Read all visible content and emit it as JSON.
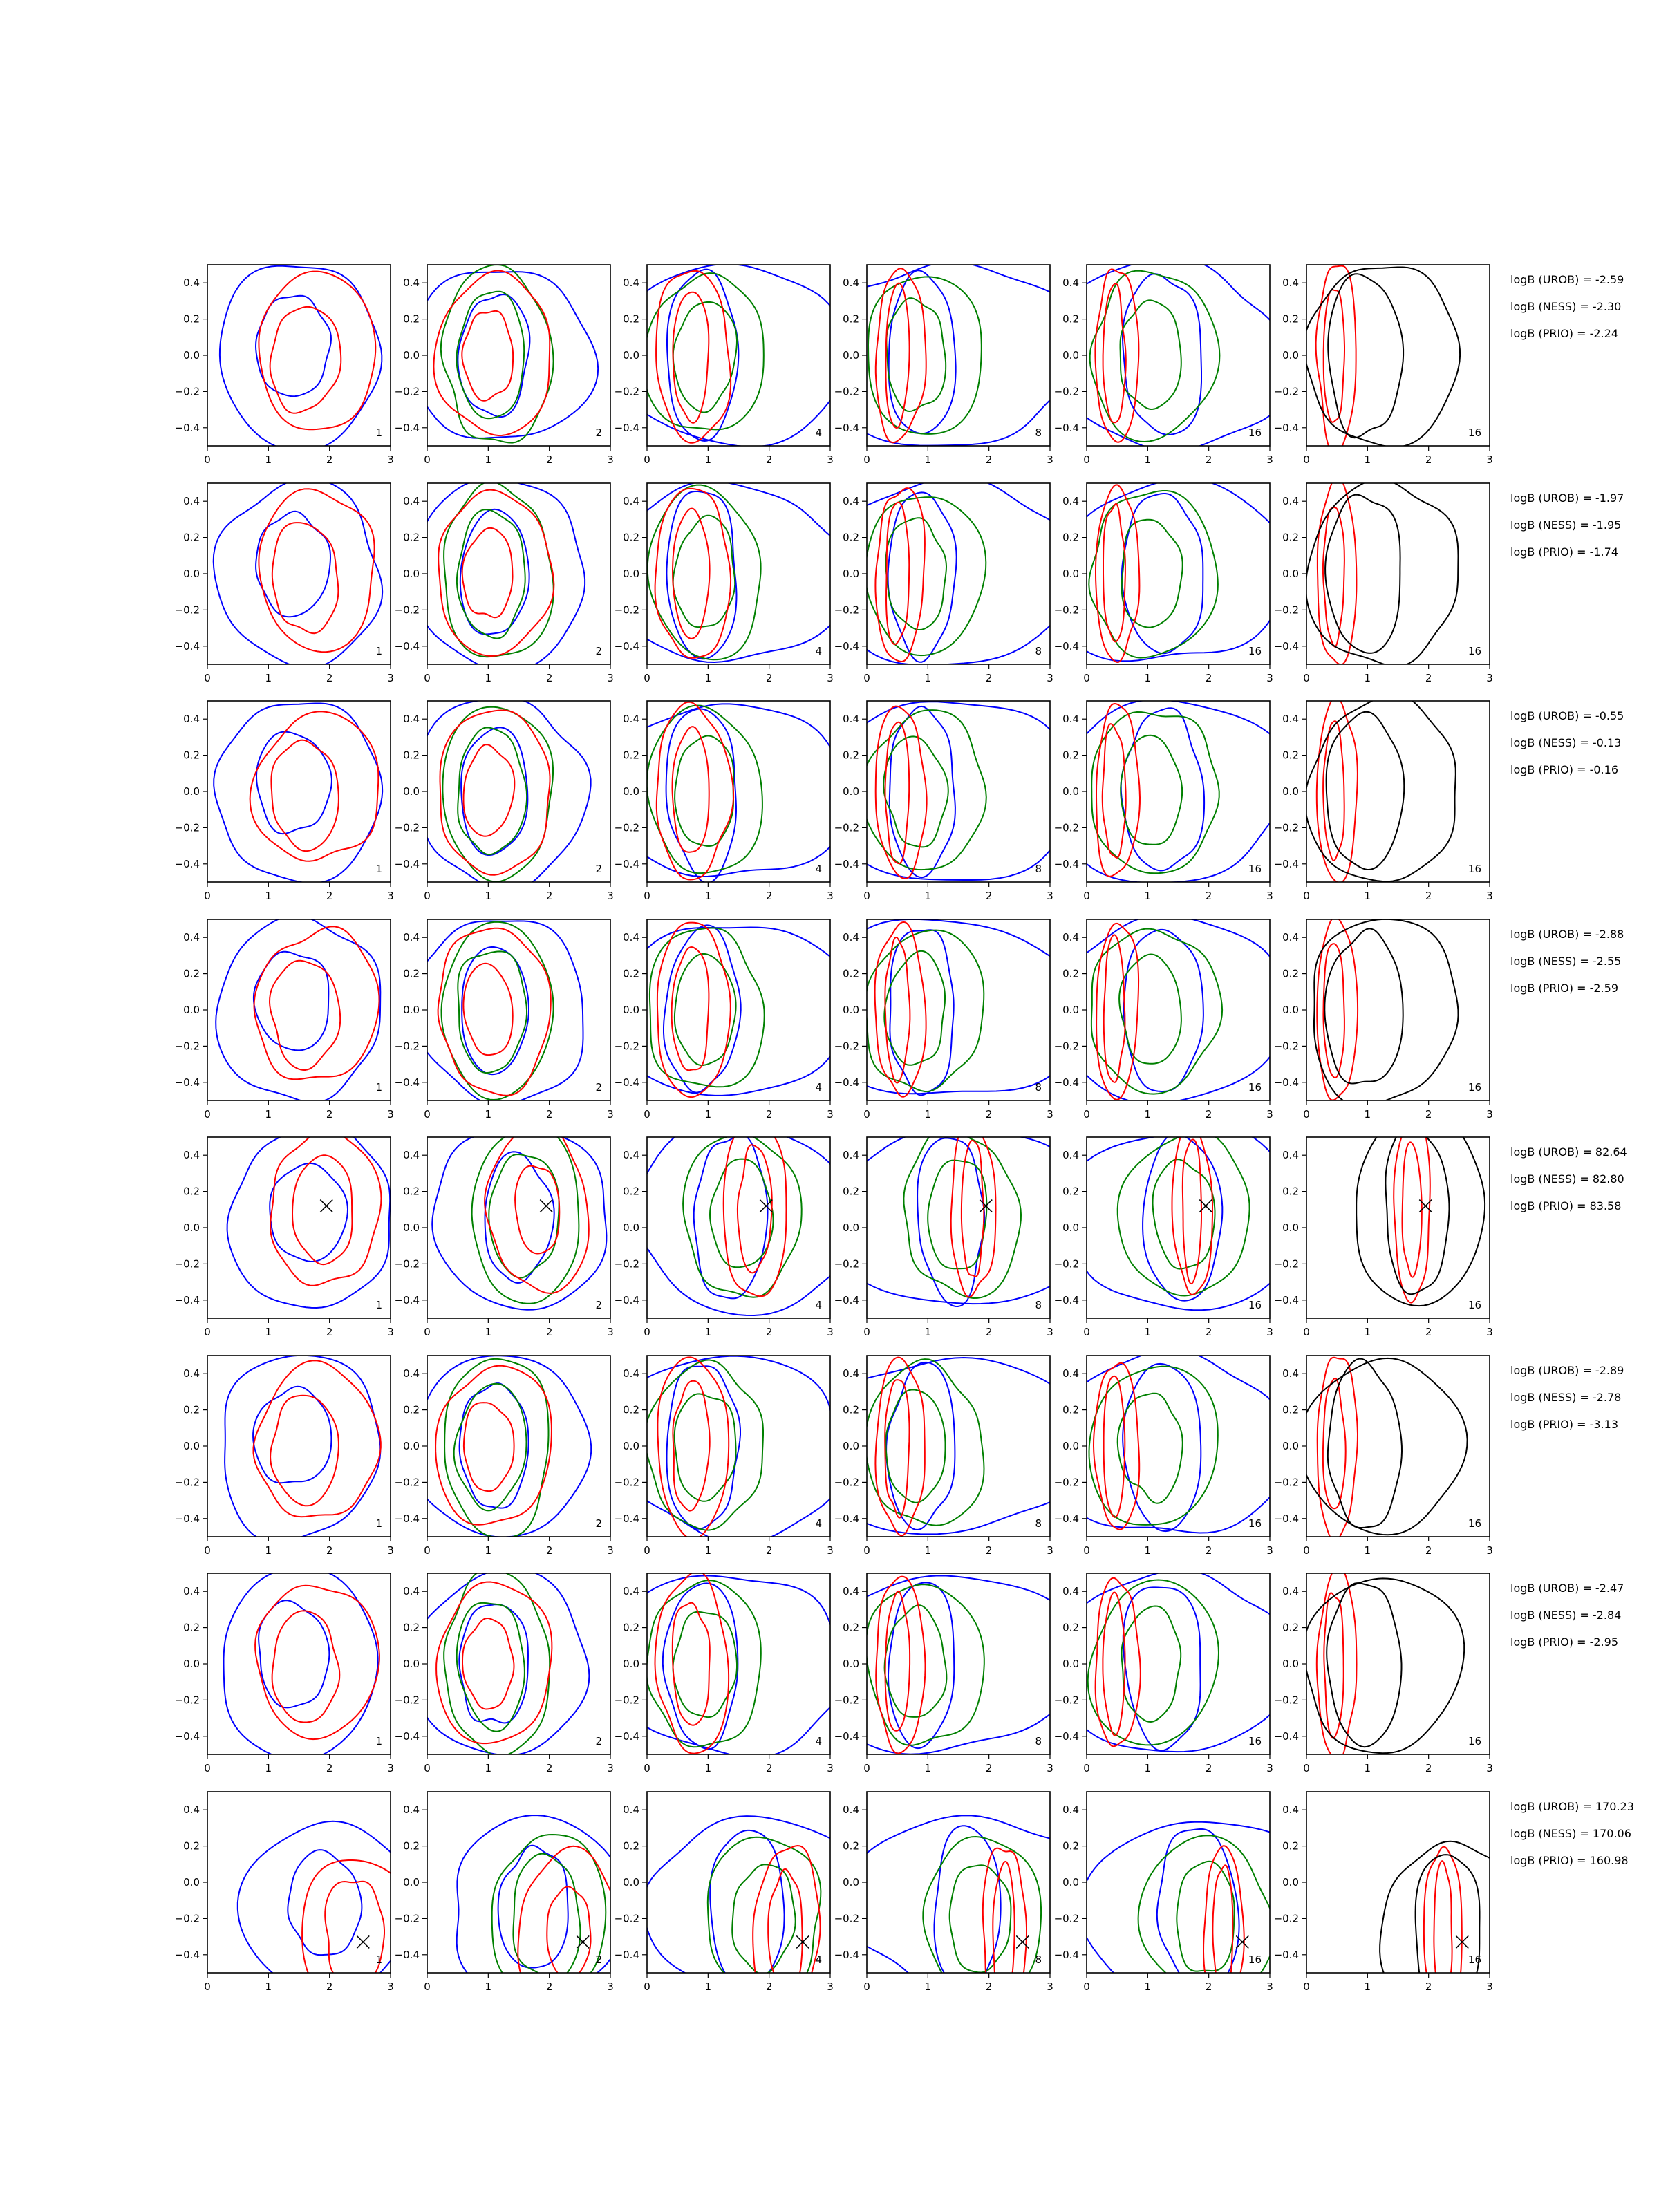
{
  "chart_data": {
    "type": "contour-grid",
    "grid": {
      "rows": 8,
      "cols": 6
    },
    "xlim": [
      0,
      3
    ],
    "ylim": [
      -0.5,
      0.5
    ],
    "xticks": [
      0,
      1,
      2,
      3
    ],
    "yticks": [
      -0.4,
      -0.2,
      0.0,
      0.2,
      0.4
    ],
    "xtick_labels": [
      "0",
      "1",
      "2",
      "3"
    ],
    "ytick_labels": [
      "−0.4",
      "−0.2",
      "0.0",
      "0.2",
      "0.4"
    ],
    "column_labels": [
      "1",
      "2",
      "4",
      "8",
      "16",
      "16"
    ],
    "colors": {
      "blue": "#0000ff",
      "red": "#ff0000",
      "green": "#008000",
      "black": "#000000"
    },
    "annotations": [
      [
        "logB (UROB) = -2.59",
        "logB (NESS) = -2.30",
        "logB (PRIO) = -2.24"
      ],
      [
        "logB (UROB) = -1.97",
        "logB (NESS) = -1.95",
        "logB (PRIO) = -1.74"
      ],
      [
        "logB (UROB) = -0.55",
        "logB (NESS) = -0.13",
        "logB (PRIO) = -0.16"
      ],
      [
        "logB (UROB) = -2.88",
        "logB (NESS) = -2.55",
        "logB (PRIO) = -2.59"
      ],
      [
        "logB (UROB) = 82.64",
        "logB (NESS) = 82.80",
        "logB (PRIO) = 83.58"
      ],
      [
        "logB (UROB) = -2.89",
        "logB (NESS) = -2.78",
        "logB (PRIO) = -3.13"
      ],
      [
        "logB (UROB) = -2.47",
        "logB (NESS) = -2.84",
        "logB (PRIO) = -2.95"
      ],
      [
        "logB (UROB) = 170.23",
        "logB (NESS) = 170.06",
        "logB (PRIO) = 160.98"
      ]
    ],
    "true_points": [
      null,
      null,
      null,
      null,
      [
        1.95,
        0.12
      ],
      null,
      null,
      [
        2.55,
        -0.33
      ]
    ],
    "contours": [
      {
        "blue": [
          [
            1.5,
            0,
            1.35,
            0.5
          ],
          [
            1.4,
            0.05,
            0.6,
            0.28
          ]
        ],
        "red": [
          [
            1.8,
            0.02,
            1.0,
            0.42
          ],
          [
            1.6,
            -0.02,
            0.55,
            0.3
          ]
        ],
        "green": []
      },
      {
        "blue": [
          [
            1.2,
            0,
            1.45,
            0.5
          ],
          [
            1.1,
            0,
            0.55,
            0.35
          ]
        ],
        "red": [
          [
            1.1,
            0,
            0.95,
            0.44
          ],
          [
            1.0,
            0,
            0.4,
            0.25
          ]
        ],
        "green": [
          [
            1.15,
            0,
            0.9,
            0.48
          ],
          [
            1.05,
            0,
            0.55,
            0.35
          ]
        ]
      },
      {
        "blue": [
          [
            1.35,
            0,
            1.9,
            0.5
          ],
          [
            0.9,
            0,
            0.6,
            0.45
          ]
        ],
        "red": [
          [
            0.75,
            0,
            0.6,
            0.48
          ],
          [
            0.72,
            0,
            0.3,
            0.35
          ]
        ],
        "green": [
          [
            0.95,
            0,
            0.95,
            0.45
          ],
          [
            0.95,
            0,
            0.5,
            0.3
          ]
        ]
      },
      {
        "blue": [
          [
            1.3,
            0,
            2.2,
            0.5
          ],
          [
            0.9,
            0,
            0.55,
            0.45
          ]
        ],
        "red": [
          [
            0.55,
            0,
            0.4,
            0.48
          ],
          [
            0.5,
            0,
            0.2,
            0.38
          ]
        ],
        "green": [
          [
            0.95,
            0,
            0.95,
            0.45
          ],
          [
            0.8,
            0,
            0.5,
            0.3
          ]
        ]
      },
      {
        "blue": [
          [
            1.35,
            0,
            1.95,
            0.5
          ],
          [
            1.25,
            0,
            0.65,
            0.45
          ]
        ],
        "red": [
          [
            0.5,
            0,
            0.35,
            0.48
          ],
          [
            0.45,
            0,
            0.18,
            0.38
          ]
        ],
        "green": [
          [
            1.1,
            0,
            1.05,
            0.45
          ],
          [
            1.05,
            0,
            0.5,
            0.3
          ]
        ]
      },
      {
        "blue": [],
        "red": [
          [
            0.5,
            0,
            0.33,
            0.5
          ],
          [
            0.45,
            0,
            0.17,
            0.38
          ]
        ],
        "green": [],
        "black": [
          [
            1.25,
            0,
            1.25,
            0.5
          ],
          [
            0.95,
            0,
            0.6,
            0.45
          ]
        ]
      }
    ]
  }
}
